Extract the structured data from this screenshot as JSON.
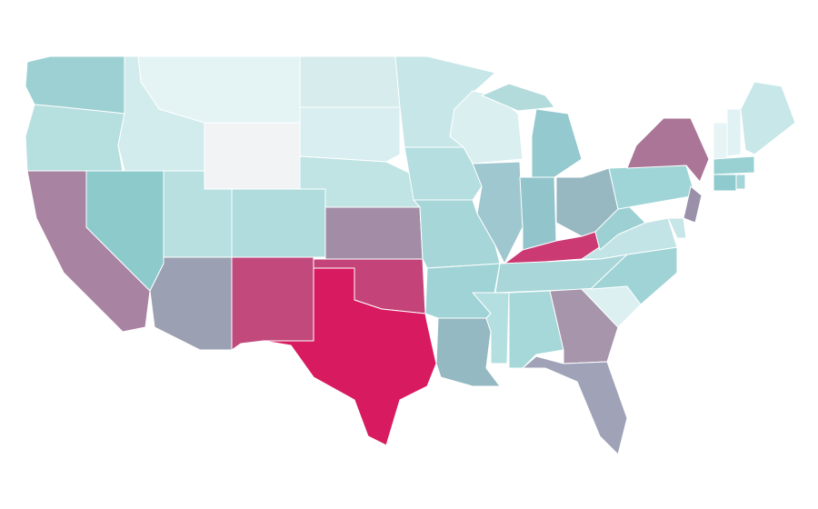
{
  "map": {
    "regions": [
      {
        "color": "#9dd0d2"
      },
      {
        "color": "#b6dfe0"
      },
      {
        "color": "#a883a2"
      },
      {
        "color": "#8ccacc"
      },
      {
        "color": "#d2ebec"
      },
      {
        "color": "#e4f3f4"
      },
      {
        "color": "#f1f3f4"
      },
      {
        "color": "#b8e0e1"
      },
      {
        "color": "#b0dcdd"
      },
      {
        "color": "#9ba0b2"
      },
      {
        "color": "#c2497c"
      },
      {
        "color": "#d6eced"
      },
      {
        "color": "#d9eef0"
      },
      {
        "color": "#c0e3e4"
      },
      {
        "color": "#a28ca6"
      },
      {
        "color": "#c44379"
      },
      {
        "color": "#d81b60"
      },
      {
        "color": "#c7e6e7"
      },
      {
        "color": "#b4dee0"
      },
      {
        "color": "#a6d6d8"
      },
      {
        "color": "#9fd3d6"
      },
      {
        "color": "#94b9c2"
      },
      {
        "color": "#d9eff0"
      },
      {
        "color": "#9ec7cf"
      },
      {
        "color": "#93c9cf"
      },
      {
        "color": "#92c4cc"
      },
      {
        "color": "#97b7c1"
      },
      {
        "color": "#b3dbdc"
      },
      {
        "color": "#cc3a73"
      },
      {
        "color": "#a8d6d9"
      },
      {
        "color": "#b4dfe0"
      },
      {
        "color": "#a6d8d9"
      },
      {
        "color": "#a695ab"
      },
      {
        "color": "#a0a3b8"
      },
      {
        "color": "#dcf0f1"
      },
      {
        "color": "#9fd3d5"
      },
      {
        "color": "#c2e4e6"
      },
      {
        "color": "#9cd0d2"
      },
      {
        "color": "#9fd5d7"
      },
      {
        "color": "#aa7596"
      },
      {
        "color": "#9a90aa"
      },
      {
        "color": "#c7e6e8"
      },
      {
        "color": "#e6f4f5"
      },
      {
        "color": "#e0f2f3"
      },
      {
        "color": "#c7e7e8"
      },
      {
        "color": "#99d0d2"
      },
      {
        "color": "#8fcbce"
      },
      {
        "color": "#a4d6d8"
      }
    ]
  }
}
